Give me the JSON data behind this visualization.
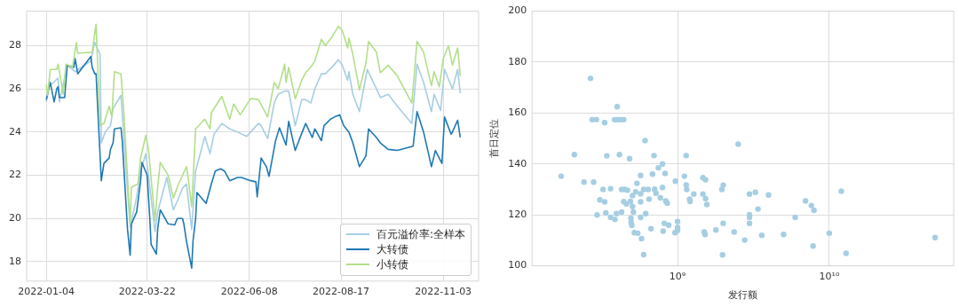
{
  "chart_data": [
    {
      "type": "line",
      "xlim": [
        "2021-12-20",
        "2022-11-30"
      ],
      "ylim": [
        17.1,
        29.6
      ],
      "xticks": [
        "2022-01-04",
        "2022-03-22",
        "2022-06-08",
        "2022-08-17",
        "2022-11-03"
      ],
      "yticks": [
        18,
        20,
        22,
        24,
        26,
        28
      ],
      "grid": true,
      "legend": "bottom right",
      "series": [
        {
          "name": "百元溢价率:全样本",
          "color": "#a6cee3",
          "x": [
            "2022-01-04",
            "2022-01-06",
            "2022-01-13",
            "2022-01-14",
            "2022-01-20",
            "2022-01-26",
            "2022-02-07",
            "2022-02-10",
            "2022-02-14",
            "2022-02-15",
            "2022-02-18",
            "2022-02-22",
            "2022-02-24",
            "2022-03-02",
            "2022-03-04",
            "2022-03-09",
            "2022-03-14",
            "2022-03-17",
            "2022-03-21",
            "2022-03-23",
            "2022-03-28",
            "2022-03-30",
            "2022-04-06",
            "2022-04-11",
            "2022-04-14",
            "2022-04-18",
            "2022-04-21",
            "2022-04-25",
            "2022-04-28",
            "2022-05-05",
            "2022-05-09",
            "2022-05-12",
            "2022-05-18",
            "2022-05-24",
            "2022-05-30",
            "2022-06-06",
            "2022-06-09",
            "2022-06-15",
            "2022-06-17",
            "2022-06-22",
            "2022-06-27",
            "2022-06-30",
            "2022-07-05",
            "2022-07-08",
            "2022-07-13",
            "2022-07-18",
            "2022-07-21",
            "2022-07-25",
            "2022-07-28",
            "2022-08-02",
            "2022-08-05",
            "2022-08-10",
            "2022-08-15",
            "2022-08-18",
            "2022-08-22",
            "2022-08-23",
            "2022-08-26",
            "2022-08-31",
            "2022-09-06",
            "2022-09-13",
            "2022-09-16",
            "2022-09-22",
            "2022-09-29",
            "2022-10-10",
            "2022-10-14",
            "2022-10-19",
            "2022-10-25",
            "2022-10-27",
            "2022-11-01",
            "2022-11-04",
            "2022-11-10",
            "2022-11-14",
            "2022-11-16"
          ],
          "values": [
            25.4,
            26.1,
            26.5,
            25.4,
            27.1,
            26.8,
            27.3,
            28.15,
            27.6,
            23.5,
            24.0,
            24.3,
            25.1,
            25.7,
            24.0,
            19.6,
            21.0,
            22.2,
            23.0,
            22.0,
            19.4,
            20.3,
            21.9,
            20.4,
            20.8,
            21.4,
            21.6,
            19.5,
            22.2,
            23.8,
            23.0,
            23.9,
            24.4,
            24.15,
            24.0,
            23.8,
            24.0,
            24.4,
            24.3,
            23.7,
            25.35,
            25.75,
            25.9,
            25.9,
            24.3,
            25.5,
            25.5,
            25.35,
            26.0,
            26.7,
            26.7,
            27.0,
            27.35,
            27.1,
            26.4,
            26.8,
            25.75,
            24.95,
            26.9,
            26.0,
            25.6,
            25.75,
            25.2,
            24.4,
            27.15,
            26.3,
            24.95,
            25.75,
            25.0,
            26.9,
            26.0,
            26.9,
            25.8
          ]
        },
        {
          "name": "大转债",
          "color": "#1f78b4",
          "x": [
            "2022-01-04",
            "2022-01-07",
            "2022-01-10",
            "2022-01-12",
            "2022-01-13",
            "2022-01-14",
            "2022-01-18",
            "2022-01-20",
            "2022-01-25",
            "2022-01-26",
            "2022-01-28",
            "2022-02-07",
            "2022-02-08",
            "2022-02-10",
            "2022-02-11",
            "2022-02-15",
            "2022-02-17",
            "2022-02-21",
            "2022-02-22",
            "2022-02-24",
            "2022-02-25",
            "2022-03-02",
            "2022-03-03",
            "2022-03-07",
            "2022-03-09",
            "2022-03-10",
            "2022-03-14",
            "2022-03-17",
            "2022-03-18",
            "2022-03-22",
            "2022-03-24",
            "2022-03-25",
            "2022-03-29",
            "2022-03-30",
            "2022-04-01",
            "2022-04-07",
            "2022-04-12",
            "2022-04-14",
            "2022-04-18",
            "2022-04-19",
            "2022-04-21",
            "2022-04-25",
            "2022-04-26",
            "2022-04-28",
            "2022-04-29",
            "2022-05-06",
            "2022-05-10",
            "2022-05-13",
            "2022-05-17",
            "2022-05-20",
            "2022-05-24",
            "2022-05-30",
            "2022-06-02",
            "2022-06-09",
            "2022-06-13",
            "2022-06-14",
            "2022-06-17",
            "2022-06-21",
            "2022-06-23",
            "2022-06-28",
            "2022-07-01",
            "2022-07-06",
            "2022-07-08",
            "2022-07-13",
            "2022-07-18",
            "2022-07-21",
            "2022-07-26",
            "2022-07-28",
            "2022-08-02",
            "2022-08-04",
            "2022-08-09",
            "2022-08-12",
            "2022-08-16",
            "2022-08-19",
            "2022-08-23",
            "2022-08-26",
            "2022-08-31",
            "2022-09-05",
            "2022-09-07",
            "2022-09-13",
            "2022-09-16",
            "2022-09-22",
            "2022-09-29",
            "2022-10-11",
            "2022-10-14",
            "2022-10-19",
            "2022-10-25",
            "2022-10-28",
            "2022-11-02",
            "2022-11-04",
            "2022-11-09",
            "2022-11-10",
            "2022-11-14",
            "2022-11-16"
          ],
          "values": [
            25.5,
            26.3,
            25.4,
            26.0,
            26.1,
            25.6,
            25.6,
            27.1,
            27.0,
            27.4,
            26.7,
            27.5,
            27.0,
            26.7,
            26.7,
            21.75,
            22.55,
            22.8,
            23.2,
            23.5,
            24.15,
            24.2,
            23.6,
            19.5,
            18.3,
            19.75,
            20.3,
            21.75,
            22.6,
            22.0,
            20.0,
            18.8,
            18.35,
            19.5,
            20.4,
            19.75,
            19.7,
            20.0,
            20.0,
            19.75,
            18.95,
            17.7,
            18.95,
            20.0,
            21.2,
            20.7,
            21.6,
            22.2,
            22.3,
            22.2,
            21.75,
            21.9,
            21.9,
            21.75,
            21.7,
            21.0,
            22.8,
            22.4,
            21.95,
            23.6,
            24.2,
            23.4,
            24.5,
            23.15,
            23.95,
            24.4,
            23.75,
            24.15,
            23.6,
            24.3,
            24.6,
            24.7,
            24.8,
            24.3,
            24.0,
            23.5,
            22.4,
            22.9,
            24.15,
            23.75,
            23.5,
            23.2,
            23.15,
            23.35,
            24.95,
            24.0,
            22.4,
            23.15,
            22.55,
            24.7,
            23.9,
            24.0,
            24.55,
            23.75
          ]
        },
        {
          "name": "小转债",
          "color": "#b2df8a",
          "x": [
            "2022-01-04",
            "2022-01-05",
            "2022-01-07",
            "2022-01-12",
            "2022-01-13",
            "2022-01-17",
            "2022-01-19",
            "2022-01-24",
            "2022-01-27",
            "2022-01-28",
            "2022-02-08",
            "2022-02-11",
            "2022-02-14",
            "2022-02-17",
            "2022-02-21",
            "2022-02-23",
            "2022-02-25",
            "2022-03-02",
            "2022-03-04",
            "2022-03-09",
            "2022-03-10",
            "2022-03-15",
            "2022-03-17",
            "2022-03-21",
            "2022-03-23",
            "2022-03-28",
            "2022-03-30",
            "2022-04-01",
            "2022-04-07",
            "2022-04-11",
            "2022-04-15",
            "2022-04-21",
            "2022-04-22",
            "2022-04-25",
            "2022-04-28",
            "2022-05-05",
            "2022-05-09",
            "2022-05-10",
            "2022-05-18",
            "2022-05-24",
            "2022-05-27",
            "2022-06-01",
            "2022-06-09",
            "2022-06-10",
            "2022-06-15",
            "2022-06-22",
            "2022-06-27",
            "2022-06-30",
            "2022-07-05",
            "2022-07-06",
            "2022-07-08",
            "2022-07-13",
            "2022-07-18",
            "2022-07-21",
            "2022-07-26",
            "2022-07-28",
            "2022-08-02",
            "2022-08-05",
            "2022-08-10",
            "2022-08-15",
            "2022-08-18",
            "2022-08-22",
            "2022-08-23",
            "2022-08-26",
            "2022-08-31",
            "2022-09-05",
            "2022-09-07",
            "2022-09-13",
            "2022-09-16",
            "2022-09-22",
            "2022-09-29",
            "2022-10-10",
            "2022-10-14",
            "2022-10-19",
            "2022-10-25",
            "2022-10-27",
            "2022-10-31",
            "2022-11-03",
            "2022-11-07",
            "2022-11-10",
            "2022-11-14",
            "2022-11-16"
          ],
          "values": [
            26.2,
            25.7,
            26.9,
            26.9,
            27.15,
            25.75,
            27.15,
            27.0,
            28.15,
            27.65,
            27.7,
            29.0,
            24.3,
            24.4,
            25.2,
            24.7,
            26.8,
            26.7,
            25.1,
            19.75,
            21.45,
            21.6,
            22.8,
            23.85,
            23.2,
            19.9,
            21.45,
            22.6,
            22.0,
            20.95,
            21.6,
            22.4,
            22.0,
            20.55,
            24.15,
            24.6,
            24.15,
            24.9,
            25.65,
            24.6,
            25.3,
            24.8,
            25.55,
            25.55,
            25.5,
            24.7,
            26.3,
            26.0,
            27.15,
            26.3,
            27.0,
            25.55,
            26.4,
            26.75,
            27.1,
            27.3,
            28.3,
            28.0,
            28.4,
            28.9,
            28.7,
            27.9,
            28.35,
            27.6,
            25.95,
            27.2,
            28.2,
            27.7,
            26.75,
            27.1,
            26.6,
            25.35,
            28.2,
            27.7,
            26.15,
            26.8,
            26.1,
            27.4,
            28.0,
            27.1,
            27.9,
            26.6
          ]
        }
      ]
    },
    {
      "type": "scatter",
      "xlabel": "发行额",
      "ylabel": "首日定位",
      "log": "x",
      "xlim": [
        110000000.0,
        66000000000.0
      ],
      "ylim": [
        100,
        200
      ],
      "xticks": [
        {
          "value": 1000000000.0,
          "label": "10⁹"
        },
        {
          "value": 10000000000.0,
          "label": "10¹⁰"
        }
      ],
      "yticks": [
        100,
        120,
        140,
        160,
        180,
        200
      ],
      "grid": true,
      "marker": "circle",
      "series": [
        {
          "color": "#a6cee3",
          "x": [
            171000000.0,
            209000000.0,
            242000000.0,
            267000000.0,
            274000000.0,
            280000000.0,
            292000000.0,
            295000000.0,
            308000000.0,
            323000000.0,
            331000000.0,
            331000000.0,
            337000000.0,
            342000000.0,
            362000000.0,
            362000000.0,
            385000000.0,
            387000000.0,
            396000000.0,
            400000000.0,
            404000000.0,
            414000000.0,
            422000000.0,
            428000000.0,
            428000000.0,
            442000000.0,
            442000000.0,
            448000000.0,
            461000000.0,
            468000000.0,
            483000000.0,
            489000000.0,
            493000000.0,
            495000000.0,
            500000000.0,
            505000000.0,
            505000000.0,
            512000000.0,
            519000000.0,
            530000000.0,
            540000000.0,
            547000000.0,
            571000000.0,
            571000000.0,
            571000000.0,
            571000000.0,
            579000000.0,
            598000000.0,
            598000000.0,
            611000000.0,
            617000000.0,
            640000000.0,
            649000000.0,
            668000000.0,
            684000000.0,
            700000000.0,
            706000000.0,
            721000000.0,
            748000000.0,
            771000000.0,
            796000000.0,
            796000000.0,
            804000000.0,
            818000000.0,
            828000000.0,
            836000000.0,
            855000000.0,
            875000000.0,
            962000000.0,
            968000000.0,
            1000000000.0,
            1000000000.0,
            1000000000.0,
            1110000000.0,
            1140000000.0,
            1140000000.0,
            1150000000.0,
            1200000000.0,
            1210000000.0,
            1280000000.0,
            1470000000.0,
            1470000000.0,
            1500000000.0,
            1520000000.0,
            1530000000.0,
            1530000000.0,
            1560000000.0,
            1790000000.0,
            1960000000.0,
            1980000000.0,
            2000000000.0,
            2000000000.0,
            2360000000.0,
            2510000000.0,
            2770000000.0,
            2980000000.0,
            2980000000.0,
            2980000000.0,
            2980000000.0,
            3260000000.0,
            3390000000.0,
            3590000000.0,
            3980000000.0,
            5000000000.0,
            5960000000.0,
            6970000000.0,
            7620000000.0,
            7820000000.0,
            7930000000.0,
            10000000000.0,
            12000000000.0,
            12900000000.0,
            49800000000.0
          ],
          "values": [
            135.2,
            143.7,
            132.9,
            173.6,
            157.4,
            132.9,
            157.4,
            120.0,
            125.9,
            130.0,
            125.1,
            156.2,
            120.8,
            143.2,
            130.3,
            119.0,
            157.4,
            118.2,
            120.5,
            162.5,
            157.4,
            143.7,
            157.4,
            121.1,
            130.0,
            125.2,
            157.4,
            130.0,
            124.3,
            129.7,
            142.1,
            125.3,
            118.7,
            117.0,
            115.9,
            123.3,
            127.6,
            121.1,
            113.0,
            129.1,
            132.4,
            112.8,
            128.3,
            125.1,
            135.5,
            119.0,
            110.7,
            130.0,
            104.4,
            149.2,
            120.5,
            130.0,
            126.2,
            114.6,
            136.0,
            143.3,
            130.1,
            128.5,
            138.5,
            126.7,
            140.0,
            130.8,
            113.6,
            116.7,
            136.3,
            125.5,
            124.6,
            116.0,
            113.0,
            133.2,
            113.9,
            117.4,
            115.1,
            135.2,
            143.3,
            131.8,
            130.0,
            126.2,
            125.3,
            128.2,
            134.6,
            128.2,
            113.3,
            112.3,
            133.8,
            126.4,
            124.1,
            114.1,
            130.0,
            104.3,
            131.7,
            116.7,
            113.3,
            147.8,
            110.1,
            128.2,
            120.1,
            119.0,
            116.7,
            128.9,
            122.3,
            112.0,
            127.8,
            112.3,
            119.0,
            125.5,
            123.7,
            107.8,
            121.8,
            112.8,
            129.3,
            104.9,
            111.1
          ]
        }
      ]
    }
  ]
}
